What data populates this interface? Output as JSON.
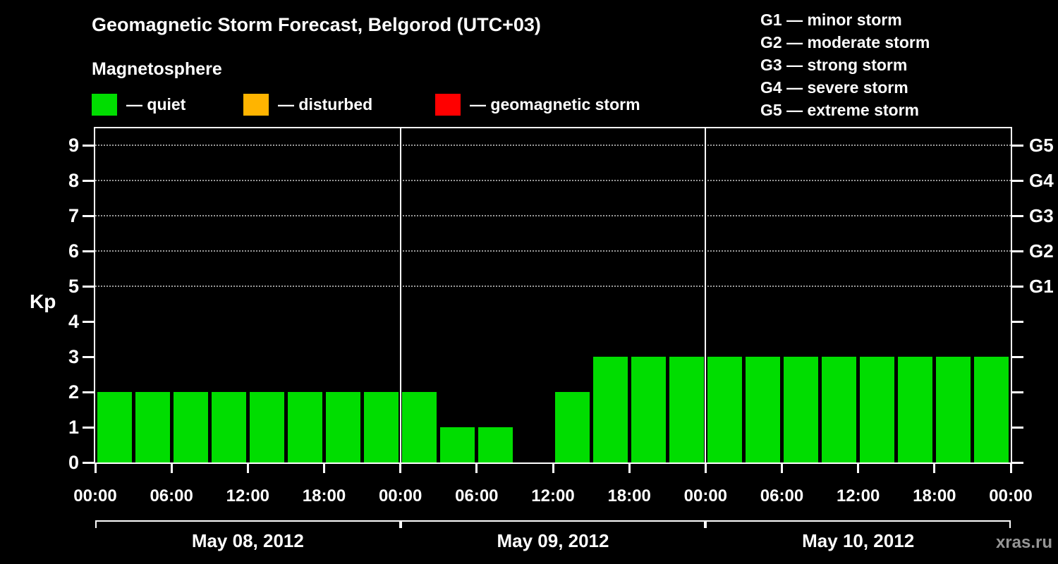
{
  "title": "Geomagnetic Storm Forecast, Belgorod (UTC+03)",
  "subtitle": "Magnetosphere",
  "legend": {
    "items": [
      {
        "name": "quiet",
        "label": "— quiet",
        "color": "#00dd00"
      },
      {
        "name": "disturbed",
        "label": "— disturbed",
        "color": "#ffb400"
      },
      {
        "name": "storm",
        "label": "— geomagnetic storm",
        "color": "#ff0000"
      }
    ]
  },
  "storm_scale_legend": [
    "G1 — minor storm",
    "G2 — moderate storm",
    "G3 — strong storm",
    "G4 — severe storm",
    "G5 — extreme storm"
  ],
  "watermark": "xras.ru",
  "chart_data": {
    "type": "bar",
    "title": "Geomagnetic Storm Forecast, Belgorod (UTC+03)",
    "ylabel": "Kp",
    "ylim": [
      0,
      9
    ],
    "bar_color": "#00dd00",
    "hours_per_bar": 3,
    "y_ticks": [
      0,
      1,
      2,
      3,
      4,
      5,
      6,
      7,
      8,
      9
    ],
    "gridline_levels": [
      5,
      6,
      7,
      8,
      9
    ],
    "right_axis_labels": [
      {
        "label": "G1",
        "kp": 5
      },
      {
        "label": "G2",
        "kp": 6
      },
      {
        "label": "G3",
        "kp": 7
      },
      {
        "label": "G4",
        "kp": 8
      },
      {
        "label": "G5",
        "kp": 9
      }
    ],
    "x_tick_labels": [
      "00:00",
      "06:00",
      "12:00",
      "18:00",
      "00:00",
      "06:00",
      "12:00",
      "18:00",
      "00:00",
      "06:00",
      "12:00",
      "18:00",
      "00:00"
    ],
    "days": [
      {
        "label": "May 08, 2012",
        "values": [
          2,
          2,
          2,
          2,
          2,
          2,
          2,
          2
        ]
      },
      {
        "label": "May 09, 2012",
        "values": [
          2,
          1,
          1,
          0,
          2,
          3,
          3,
          3
        ]
      },
      {
        "label": "May 10, 2012",
        "values": [
          3,
          3,
          3,
          3,
          3,
          3,
          3,
          3
        ]
      }
    ]
  }
}
